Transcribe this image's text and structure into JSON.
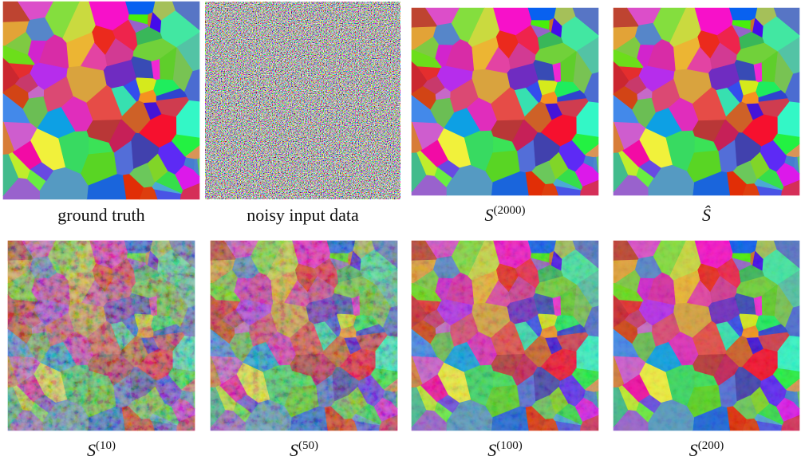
{
  "figure": {
    "panels": [
      {
        "caption": "ground truth"
      },
      {
        "caption": "noisy input data"
      },
      {
        "caption_base": "S",
        "caption_sup": "(2000)"
      },
      {
        "caption": "Ŝ"
      },
      {
        "caption_base": "S",
        "caption_sup": "(10)"
      },
      {
        "caption_base": "S",
        "caption_sup": "(50)"
      },
      {
        "caption_base": "S",
        "caption_sup": "(100)"
      },
      {
        "caption_base": "S",
        "caption_sup": "(200)"
      }
    ]
  }
}
